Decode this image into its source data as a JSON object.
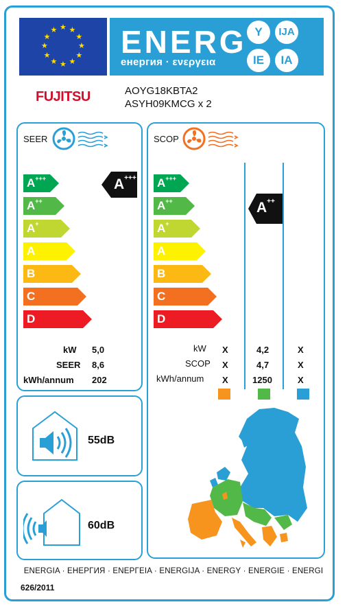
{
  "header": {
    "energy_word": "ENERG",
    "energy_subtitle": "енергия · ενεργεια",
    "language_suffixes": [
      "Y",
      "IJA",
      "IE",
      "IA"
    ]
  },
  "product": {
    "brand": "FUJITSU",
    "outdoor_model": "AOYG18KBTA2",
    "indoor_model": "ASYH09KMCG x 2"
  },
  "seer_panel": {
    "title": "SEER",
    "classes": [
      {
        "letter": "A",
        "plus": "+++",
        "color": "#00a651"
      },
      {
        "letter": "A",
        "plus": "++",
        "color": "#52b848"
      },
      {
        "letter": "A",
        "plus": "+",
        "color": "#bfd730"
      },
      {
        "letter": "A",
        "plus": "",
        "color": "#fff200"
      },
      {
        "letter": "B",
        "plus": "",
        "color": "#fdb913"
      },
      {
        "letter": "C",
        "plus": "",
        "color": "#f37021"
      },
      {
        "letter": "D",
        "plus": "",
        "color": "#ed1c24"
      }
    ],
    "rating": {
      "letter": "A",
      "plus": "+++"
    },
    "rows": [
      {
        "label": "kW",
        "value": "5,0"
      },
      {
        "label": "SEER",
        "value": "8,6"
      },
      {
        "label": "kWh/annum",
        "value": "202"
      }
    ]
  },
  "scop_panel": {
    "title": "SCOP",
    "rating": {
      "letter": "A",
      "plus": "++"
    },
    "rows": [
      {
        "label": "kW",
        "values": [
          "X",
          "4,2",
          "X"
        ]
      },
      {
        "label": "SCOP",
        "values": [
          "X",
          "4,7",
          "X"
        ]
      },
      {
        "label": "kWh/annum",
        "values": [
          "X",
          "1250",
          "X"
        ]
      }
    ],
    "climate_colors": [
      "#f7941d",
      "#52b848",
      "#2a9fd6"
    ]
  },
  "noise": {
    "indoor": "55dB",
    "outdoor": "60dB"
  },
  "footer": {
    "languages": "ENERGIA · ЕНЕРГИЯ · ΕΝΕΡΓΕΙΑ · ENERGIJA · ENERGY · ENERGIE · ENERGI",
    "regulation": "626/2011"
  }
}
